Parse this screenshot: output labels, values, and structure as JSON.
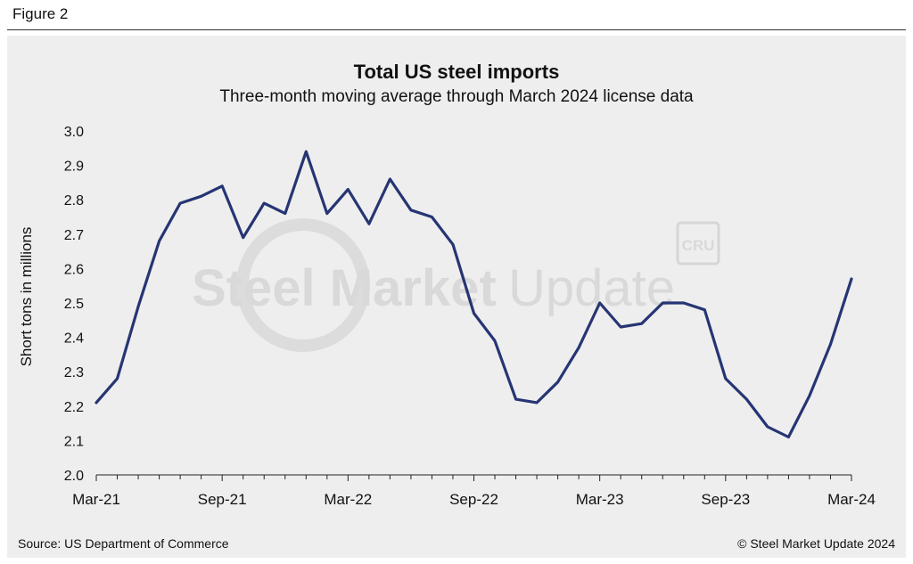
{
  "figure_label": "Figure 2",
  "footer": {
    "source": "Source: US Department of Commerce",
    "copyright": "© Steel Market Update 2024"
  },
  "watermark": {
    "text_bold": "Steel Market",
    "text_light": "Update",
    "badge": "CRU"
  },
  "colors": {
    "line": "#263573",
    "panel": "#eeeeee",
    "watermark": "#d9d9d9"
  },
  "chart_data": {
    "type": "line",
    "title": "Total US steel imports",
    "subtitle": "Three-month moving average through March 2024 license data",
    "xlabel": "",
    "ylabel": "Short tons in millions",
    "ylim": [
      2.0,
      3.0
    ],
    "yticks": [
      "2.0",
      "2.1",
      "2.2",
      "2.3",
      "2.4",
      "2.5",
      "2.6",
      "2.7",
      "2.8",
      "2.9",
      "3.0"
    ],
    "xticks": [
      {
        "index": 0,
        "label": "Mar-21"
      },
      {
        "index": 6,
        "label": "Sep-21"
      },
      {
        "index": 12,
        "label": "Mar-22"
      },
      {
        "index": 18,
        "label": "Sep-22"
      },
      {
        "index": 24,
        "label": "Mar-23"
      },
      {
        "index": 30,
        "label": "Sep-23"
      },
      {
        "index": 36,
        "label": "Mar-24"
      }
    ],
    "x": [
      "Mar-21",
      "Apr-21",
      "May-21",
      "Jun-21",
      "Jul-21",
      "Aug-21",
      "Sep-21",
      "Oct-21",
      "Nov-21",
      "Dec-21",
      "Jan-22",
      "Feb-22",
      "Mar-22",
      "Apr-22",
      "May-22",
      "Jun-22",
      "Jul-22",
      "Aug-22",
      "Sep-22",
      "Oct-22",
      "Nov-22",
      "Dec-22",
      "Jan-23",
      "Feb-23",
      "Mar-23",
      "Apr-23",
      "May-23",
      "Jun-23",
      "Jul-23",
      "Aug-23",
      "Sep-23",
      "Oct-23",
      "Nov-23",
      "Dec-23",
      "Jan-24",
      "Feb-24",
      "Mar-24"
    ],
    "series": [
      {
        "name": "Total US steel imports",
        "values": [
          2.21,
          2.28,
          2.49,
          2.68,
          2.79,
          2.81,
          2.84,
          2.69,
          2.79,
          2.76,
          2.94,
          2.76,
          2.83,
          2.73,
          2.86,
          2.77,
          2.75,
          2.67,
          2.47,
          2.39,
          2.22,
          2.21,
          2.27,
          2.37,
          2.5,
          2.43,
          2.44,
          2.5,
          2.5,
          2.48,
          2.28,
          2.22,
          2.14,
          2.11,
          2.23,
          2.38,
          2.57
        ]
      }
    ]
  }
}
